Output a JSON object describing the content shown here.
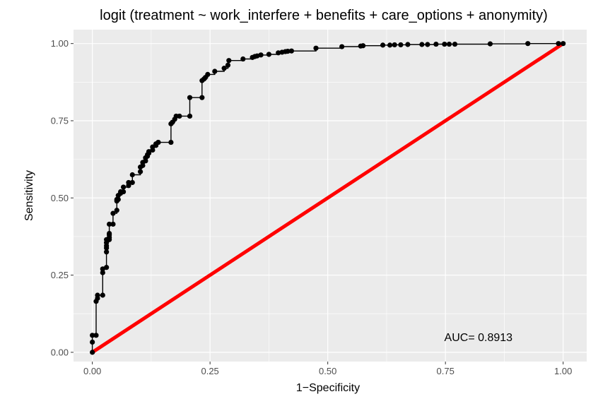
{
  "chart_data": {
    "type": "line",
    "title": "logit (treatment ~ work_interfere + benefits + care_options + anonymity)",
    "xlabel": "1−Specificity",
    "ylabel": "Sensitivity",
    "xlim": [
      -0.04,
      1.05
    ],
    "ylim": [
      -0.03,
      1.045
    ],
    "x_ticks": [
      0.0,
      0.25,
      0.5,
      0.75,
      1.0
    ],
    "x_tick_labels": [
      "0.00",
      "0.25",
      "0.50",
      "0.75",
      "1.00"
    ],
    "y_ticks": [
      0.0,
      0.25,
      0.5,
      0.75,
      1.0
    ],
    "y_tick_labels": [
      "0.00",
      "0.25",
      "0.50",
      "0.75",
      "1.00"
    ],
    "grid": true,
    "legend": "none",
    "annotation": {
      "text": "AUC= 0.8913",
      "x": 0.82,
      "y": 0.05
    },
    "colors": {
      "panel_bg": "#ebebeb",
      "grid_major": "#ffffff",
      "roc_line": "#000000",
      "points": "#000000",
      "reference_line": "#ff0000"
    },
    "series": [
      {
        "role": "roc_curve",
        "x": [
          0.0,
          0.0,
          0.0,
          0.008,
          0.008,
          0.011,
          0.011,
          0.022,
          0.022,
          0.022,
          0.03,
          0.03,
          0.03,
          0.03,
          0.03,
          0.03,
          0.036,
          0.036,
          0.036,
          0.036,
          0.036,
          0.044,
          0.044,
          0.052,
          0.052,
          0.052,
          0.055,
          0.055,
          0.06,
          0.06,
          0.066,
          0.066,
          0.077,
          0.077,
          0.085,
          0.085,
          0.102,
          0.102,
          0.107,
          0.107,
          0.113,
          0.113,
          0.117,
          0.117,
          0.12,
          0.12,
          0.128,
          0.128,
          0.135,
          0.135,
          0.14,
          0.14,
          0.167,
          0.167,
          0.17,
          0.175,
          0.178,
          0.185,
          0.207,
          0.207,
          0.233,
          0.233,
          0.237,
          0.24,
          0.245,
          0.26,
          0.28,
          0.288,
          0.29,
          0.32,
          0.34,
          0.345,
          0.35,
          0.358,
          0.375,
          0.395,
          0.403,
          0.41,
          0.415,
          0.423,
          0.475,
          0.53,
          0.57,
          0.575,
          0.617,
          0.632,
          0.642,
          0.655,
          0.67,
          0.7,
          0.712,
          0.73,
          0.748,
          0.758,
          0.77,
          0.845,
          0.925,
          0.99,
          1.0
        ],
        "y": [
          0.0,
          0.033,
          0.055,
          0.055,
          0.165,
          0.175,
          0.185,
          0.185,
          0.258,
          0.27,
          0.275,
          0.325,
          0.338,
          0.345,
          0.355,
          0.365,
          0.365,
          0.372,
          0.38,
          0.385,
          0.415,
          0.415,
          0.45,
          0.46,
          0.49,
          0.495,
          0.495,
          0.508,
          0.515,
          0.52,
          0.52,
          0.535,
          0.54,
          0.55,
          0.55,
          0.575,
          0.585,
          0.6,
          0.605,
          0.615,
          0.62,
          0.63,
          0.635,
          0.64,
          0.645,
          0.65,
          0.655,
          0.665,
          0.67,
          0.675,
          0.68,
          0.68,
          0.68,
          0.74,
          0.745,
          0.755,
          0.765,
          0.765,
          0.765,
          0.825,
          0.825,
          0.88,
          0.885,
          0.89,
          0.9,
          0.91,
          0.92,
          0.93,
          0.945,
          0.95,
          0.955,
          0.958,
          0.96,
          0.963,
          0.965,
          0.97,
          0.972,
          0.974,
          0.975,
          0.976,
          0.985,
          0.99,
          0.992,
          0.993,
          0.995,
          0.995,
          0.996,
          0.996,
          0.997,
          0.997,
          0.997,
          0.998,
          0.998,
          0.998,
          0.998,
          0.999,
          1.0,
          1.0,
          1.0
        ]
      },
      {
        "role": "reference_line",
        "x": [
          0,
          1
        ],
        "y": [
          0,
          1
        ]
      }
    ]
  }
}
